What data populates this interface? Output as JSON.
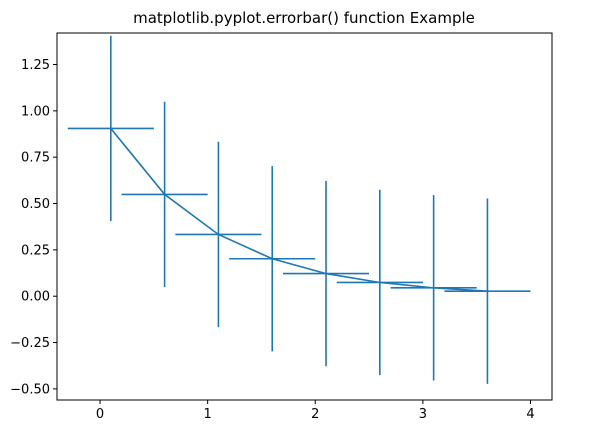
{
  "chart_data": {
    "type": "line",
    "title": "matplotlib.pyplot.errorbar() function Example",
    "xlabel": "",
    "ylabel": "",
    "xlim": [
      -0.4,
      4.2
    ],
    "ylim": [
      -0.56,
      1.42
    ],
    "x_ticks": [
      0,
      1,
      2,
      3,
      4
    ],
    "x_tick_labels": [
      "0",
      "1",
      "2",
      "3",
      "4"
    ],
    "y_ticks": [
      -0.5,
      -0.25,
      0.0,
      0.25,
      0.5,
      0.75,
      1.0,
      1.25
    ],
    "y_tick_labels": [
      "−0.50",
      "−0.25",
      "0.00",
      "0.25",
      "0.50",
      "0.75",
      "1.00",
      "1.25"
    ],
    "grid": false,
    "series": [
      {
        "x": [
          0.1,
          0.6,
          1.1,
          1.6,
          2.1,
          2.6,
          3.1,
          3.6
        ],
        "y": [
          0.905,
          0.549,
          0.333,
          0.202,
          0.122,
          0.074,
          0.045,
          0.027
        ],
        "xerr": 0.4,
        "yerr": 0.5,
        "color": "#1f77b4"
      }
    ]
  }
}
